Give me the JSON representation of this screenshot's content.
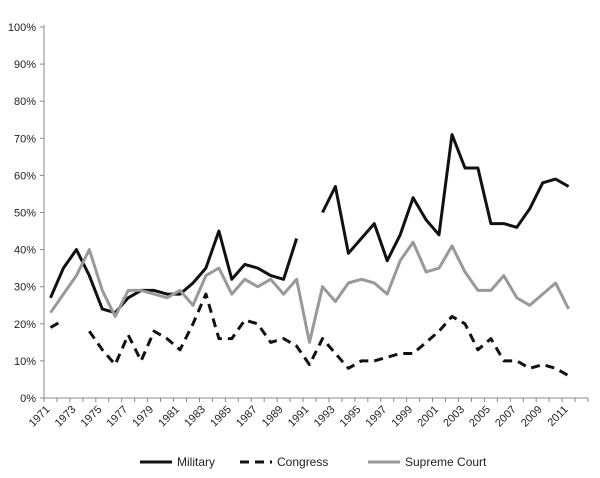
{
  "chart_data": {
    "type": "line",
    "title": "",
    "xlabel": "",
    "ylabel": "",
    "ylim": [
      0,
      100
    ],
    "y_ticks": [
      "0%",
      "10%",
      "20%",
      "30%",
      "40%",
      "50%",
      "60%",
      "70%",
      "80%",
      "90%",
      "100%"
    ],
    "x": [
      "1971",
      "1972",
      "1973",
      "1974",
      "1975",
      "1976",
      "1977",
      "1978",
      "1979",
      "1980",
      "1981",
      "1982",
      "1983",
      "1984",
      "1985",
      "1986",
      "1987",
      "1988",
      "1989",
      "1990",
      "1991",
      "1992",
      "1993",
      "1994",
      "1995",
      "1996",
      "1997",
      "1998",
      "1999",
      "2000",
      "2001",
      "2002",
      "2003",
      "2004",
      "2005",
      "2006",
      "2007",
      "2008",
      "2009",
      "2010",
      "2011",
      "2012"
    ],
    "x_tick_labels": [
      "1971",
      "1973",
      "1975",
      "1977",
      "1979",
      "1981",
      "1983",
      "1985",
      "1987",
      "1989",
      "1991",
      "1993",
      "1995",
      "1997",
      "1999",
      "2001",
      "2003",
      "2005",
      "2007",
      "2009",
      "2011"
    ],
    "legend_position": "bottom",
    "grid": false,
    "series": [
      {
        "name": "Military",
        "color": "#111111",
        "dash": "solid",
        "values": [
          27,
          35,
          40,
          33,
          24,
          23,
          27,
          29,
          29,
          28,
          28,
          31,
          35,
          45,
          32,
          36,
          35,
          33,
          32,
          43,
          null,
          50,
          57,
          39,
          43,
          47,
          37,
          44,
          54,
          48,
          44,
          71,
          62,
          62,
          47,
          47,
          46,
          51,
          58,
          59,
          57,
          null
        ]
      },
      {
        "name": "Congress",
        "color": "#111111",
        "dash": "dashed",
        "values": [
          19,
          21,
          null,
          18,
          13,
          9,
          17,
          10,
          18,
          16,
          13,
          20,
          28,
          16,
          16,
          21,
          20,
          15,
          16,
          14,
          9,
          16,
          12,
          8,
          10,
          10,
          11,
          12,
          12,
          15,
          18,
          22,
          20,
          13,
          16,
          10,
          10,
          8,
          9,
          8,
          6,
          null
        ]
      },
      {
        "name": "Supreme Court",
        "color": "#999999",
        "dash": "solid",
        "values": [
          23,
          28,
          33,
          40,
          29,
          22,
          29,
          29,
          28,
          27,
          29,
          25,
          33,
          35,
          28,
          32,
          30,
          32,
          28,
          32,
          15,
          30,
          26,
          31,
          32,
          31,
          28,
          37,
          42,
          34,
          35,
          41,
          34,
          29,
          29,
          33,
          27,
          25,
          28,
          31,
          24,
          null
        ]
      }
    ]
  }
}
